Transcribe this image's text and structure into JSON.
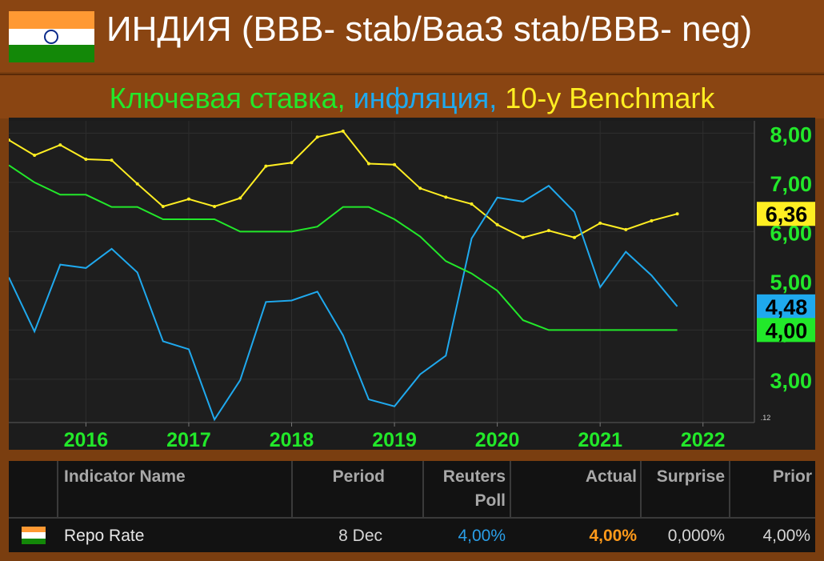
{
  "header": {
    "title": "ИНДИЯ (BBB- stab/Baa3 stab/BBB- neg)",
    "subtitle_parts": {
      "green": "Ключевая ставка,",
      "blue": " инфляция,",
      "yellow": " 10-y Benchmark"
    },
    "flag_colors": [
      "#ff9933",
      "#ffffff",
      "#138808"
    ]
  },
  "chart_data": {
    "type": "line",
    "title": "",
    "x_tick_labels": [
      "2016",
      "2017",
      "2018",
      "2019",
      "2020",
      "2021",
      "2022"
    ],
    "x_ticks": [
      2016.0,
      2017.0,
      2018.0,
      2019.0,
      2020.0,
      2021.0,
      2022.0
    ],
    "y_tick_labels": [
      "8,00",
      "7,00",
      "6,00",
      "5,00",
      "4,00",
      "3,00"
    ],
    "y_ticks": [
      8,
      7,
      6,
      5,
      4,
      3
    ],
    "ylim": [
      2.12,
      8.25
    ],
    "xlim": [
      2015.25,
      2022.5
    ],
    "axis_min_label": ".12",
    "series": [
      {
        "color": "#ffee22",
        "last_label": "6,36",
        "x": [
          2015.25,
          2015.5,
          2015.75,
          2016.0,
          2016.25,
          2016.5,
          2016.75,
          2017.0,
          2017.25,
          2017.5,
          2017.75,
          2018.0,
          2018.25,
          2018.5,
          2018.75,
          2019.0,
          2019.25,
          2019.5,
          2019.75,
          2020.0,
          2020.25,
          2020.5,
          2020.75,
          2021.0,
          2021.25,
          2021.5,
          2021.75
        ],
        "values": [
          7.86,
          7.55,
          7.76,
          7.47,
          7.45,
          6.97,
          6.51,
          6.66,
          6.51,
          6.68,
          7.33,
          7.4,
          7.92,
          8.04,
          7.38,
          7.36,
          6.88,
          6.7,
          6.56,
          6.14,
          5.88,
          6.02,
          5.88,
          6.17,
          6.04,
          6.22,
          6.36
        ]
      },
      {
        "color": "#1fa9ee",
        "last_label": "4,48",
        "x": [
          2015.25,
          2015.5,
          2015.75,
          2016.0,
          2016.25,
          2016.5,
          2016.75,
          2017.0,
          2017.25,
          2017.5,
          2017.75,
          2018.0,
          2018.25,
          2018.5,
          2018.75,
          2019.0,
          2019.25,
          2019.5,
          2019.75,
          2020.0,
          2020.25,
          2020.5,
          2020.75,
          2021.0,
          2021.25,
          2021.5,
          2021.75
        ],
        "values": [
          5.07,
          3.97,
          5.33,
          5.26,
          5.65,
          5.17,
          3.77,
          3.61,
          2.18,
          2.98,
          4.57,
          4.6,
          4.78,
          3.89,
          2.59,
          2.45,
          3.1,
          3.48,
          5.86,
          6.69,
          6.61,
          6.93,
          6.4,
          4.87,
          5.59,
          5.11,
          4.48
        ]
      },
      {
        "color": "#22e82a",
        "last_label": "4,00",
        "x": [
          2015.25,
          2015.5,
          2015.75,
          2016.0,
          2016.25,
          2016.5,
          2016.75,
          2017.0,
          2017.25,
          2017.5,
          2017.75,
          2018.0,
          2018.25,
          2018.5,
          2018.75,
          2019.0,
          2019.25,
          2019.5,
          2019.75,
          2020.0,
          2020.25,
          2020.5,
          2020.75,
          2021.0,
          2021.25,
          2021.5,
          2021.75
        ],
        "values": [
          7.35,
          7.0,
          6.75,
          6.75,
          6.5,
          6.5,
          6.25,
          6.25,
          6.25,
          6.0,
          6.0,
          6.0,
          6.1,
          6.5,
          6.5,
          6.25,
          5.9,
          5.4,
          5.15,
          4.8,
          4.2,
          4.0,
          4.0,
          4.0,
          4.0,
          4.0,
          4.0
        ]
      }
    ],
    "grid": true
  },
  "table": {
    "headers": {
      "name": "Indicator Name",
      "period": "Period",
      "poll_line1": "Reuters",
      "poll_line2": "Poll",
      "actual": "Actual",
      "surprise": "Surprise",
      "prior": "Prior"
    },
    "row": {
      "name": "Repo Rate",
      "period": "8 Dec",
      "poll": "4,00%",
      "actual": "4,00%",
      "surprise": "0,000%",
      "prior": "4,00%"
    },
    "colors": {
      "poll": "#2a9fe8",
      "actual": "#ff9a1a"
    }
  }
}
